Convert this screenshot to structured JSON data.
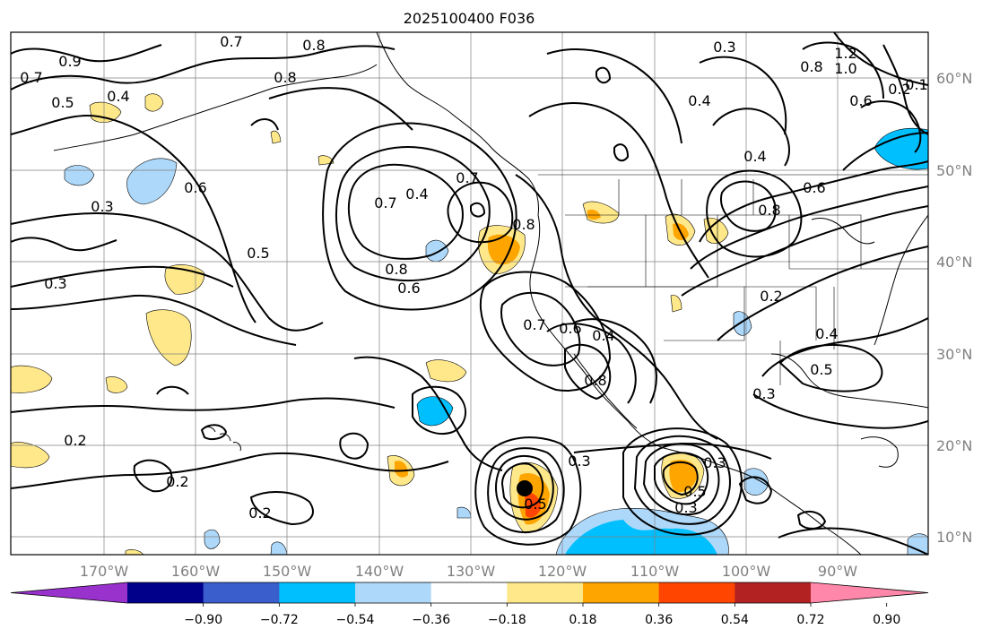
{
  "title": "2025100400 F036",
  "lat_labels": [
    "60°N",
    "50°N",
    "40°N",
    "30°N",
    "20°N",
    "10°N"
  ],
  "lon_labels": [
    "170°W",
    "160°W",
    "150°W",
    "140°W",
    "130°W",
    "120°W",
    "110°W",
    "100°W",
    "90°W"
  ],
  "colorbar": {
    "ticks": [
      "−0.90",
      "−0.72",
      "−0.54",
      "−0.36",
      "−0.18",
      "0.18",
      "0.36",
      "0.54",
      "0.72",
      "0.90"
    ],
    "colors": [
      "#9932cc",
      "#00008b",
      "#3a5fcd",
      "#00bfff",
      "#add8fa",
      "#ffffff",
      "#ffe88a",
      "#ffa500",
      "#ff4500",
      "#b22222",
      "#ff88aa"
    ]
  },
  "contour_labels": [
    "0.7",
    "0.8",
    "0.7",
    "0.9",
    "0.4",
    "0.5",
    "0.8",
    "0.6",
    "0.3",
    "0.5",
    "0.3",
    "0.7",
    "0.4",
    "0.7",
    "0.8",
    "0.6",
    "0.8",
    "0.7",
    "0.6",
    "0.4",
    "0.8",
    "0.4",
    "0.3",
    "1.2",
    "1.0",
    "0.8",
    "0.6",
    "0.2",
    "0.1",
    "0.4",
    "0.6",
    "0.8",
    "0.2",
    "0.4",
    "0.5",
    "0.3",
    "0.2",
    "0.2",
    "0.2",
    "0.3",
    "0.5",
    "0.3",
    "0.5",
    "0.3"
  ],
  "markers": [
    "storm-center"
  ]
}
